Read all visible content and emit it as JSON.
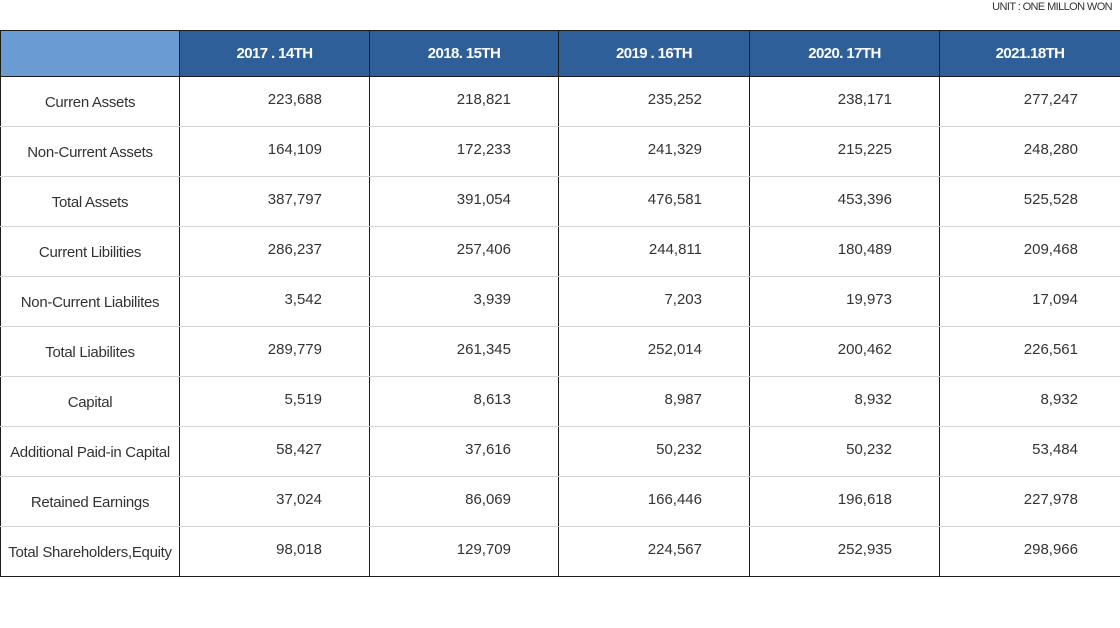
{
  "unit": "UNIT : ONE MILLON WON",
  "columns": [
    "",
    "2017 . 14TH",
    "2018. 15TH",
    "2019 . 16TH",
    "2020. 17TH",
    "2021.18TH"
  ],
  "rows": [
    {
      "label": "Curren Assets",
      "values": [
        "223,688",
        "218,821",
        "235,252",
        "238,171",
        "277,247"
      ]
    },
    {
      "label": "Non-Current Assets",
      "values": [
        "164,109",
        "172,233",
        "241,329",
        "215,225",
        "248,280"
      ]
    },
    {
      "label": "Total Assets",
      "values": [
        "387,797",
        "391,054",
        "476,581",
        "453,396",
        "525,528"
      ]
    },
    {
      "label": "Current Libilities",
      "values": [
        "286,237",
        "257,406",
        "244,811",
        "180,489",
        "209,468"
      ]
    },
    {
      "label": "Non-Current Liabilites",
      "values": [
        "3,542",
        "3,939",
        "7,203",
        "19,973",
        "17,094"
      ]
    },
    {
      "label": "Total Liabilites",
      "values": [
        "289,779",
        "261,345",
        "252,014",
        "200,462",
        "226,561"
      ]
    },
    {
      "label": "Capital",
      "values": [
        "5,519",
        "8,613",
        "8,987",
        "8,932",
        "8,932"
      ]
    },
    {
      "label": "Additional Paid-in Capital",
      "values": [
        "58,427",
        "37,616",
        "50,232",
        "50,232",
        "53,484"
      ]
    },
    {
      "label": "Retained Earnings",
      "values": [
        "37,024",
        "86,069",
        "166,446",
        "196,618",
        "227,978"
      ]
    },
    {
      "label": "Total Shareholders,Equity",
      "values": [
        "98,018",
        "129,709",
        "224,567",
        "252,935",
        "298,966"
      ]
    }
  ],
  "colors": {
    "header_bg": "#2f5f99",
    "corner_bg": "#6a9bd2",
    "header_text": "#ffffff",
    "grid_line": "#d4d4d4",
    "border": "#1c1c1c"
  }
}
